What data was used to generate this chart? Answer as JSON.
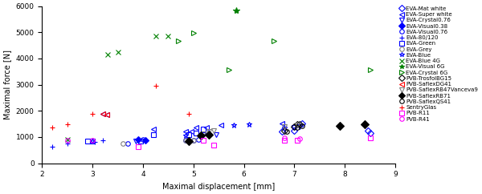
{
  "xlabel": "Maximal displacement [mm]",
  "ylabel": "Maximal force [N]",
  "xlim": [
    2,
    9
  ],
  "ylim": [
    0,
    6000
  ],
  "yticks": [
    0,
    1000,
    2000,
    3000,
    4000,
    5000,
    6000
  ],
  "xticks": [
    2,
    3,
    4,
    5,
    6,
    7,
    8,
    9
  ],
  "series": [
    {
      "label": "EVA-Mat white",
      "color": "blue",
      "marker": "D",
      "markersize": 4,
      "markerfacecolor": "none",
      "x": [
        6.75,
        7.0,
        7.15,
        8.45,
        8.5
      ],
      "y": [
        1220,
        1250,
        1530,
        1230,
        1150
      ]
    },
    {
      "label": "EVA-Super white",
      "color": "blue",
      "marker": "<",
      "markersize": 4,
      "markerfacecolor": "none",
      "x": [
        3.2,
        3.28,
        4.2,
        4.85,
        4.95,
        5.05,
        5.25,
        5.55,
        6.75
      ],
      "y": [
        1900,
        1850,
        1300,
        1200,
        1200,
        1350,
        1380,
        1450,
        1530
      ]
    },
    {
      "label": "EVA-Crystal0.76",
      "color": "blue",
      "marker": "v",
      "markersize": 4,
      "markerfacecolor": "none",
      "x": [
        3.85,
        5.2,
        5.3,
        5.45,
        6.8,
        7.0,
        7.1
      ],
      "y": [
        850,
        1080,
        1050,
        1100,
        1290,
        1350,
        1400
      ]
    },
    {
      "label": "EVA-Visual0.38",
      "color": "blue",
      "marker": "D",
      "markersize": 4,
      "markerfacecolor": "blue",
      "x": [
        3.9,
        4.05
      ],
      "y": [
        900,
        870
      ]
    },
    {
      "label": "EVA-Visual0.76",
      "color": "blue",
      "marker": "o",
      "markersize": 4,
      "markerfacecolor": "none",
      "x": [
        3.7,
        4.0,
        4.85,
        5.0,
        5.1
      ],
      "y": [
        760,
        900,
        880,
        870,
        920
      ]
    },
    {
      "label": "EVA-80/120",
      "color": "blue",
      "marker": "+",
      "markersize": 5,
      "markerfacecolor": "none",
      "x": [
        2.2,
        2.5,
        3.05,
        3.2
      ],
      "y": [
        640,
        760,
        800,
        870
      ]
    },
    {
      "label": "EVA-Green",
      "color": "blue",
      "marker": "s",
      "markersize": 4,
      "markerfacecolor": "none",
      "x": [
        2.9,
        3.0,
        3.95,
        4.2,
        4.9,
        5.05,
        5.2
      ],
      "y": [
        850,
        830,
        830,
        1100,
        1100,
        1150,
        1300
      ]
    },
    {
      "label": "EVA-Grey",
      "color": "gray",
      "marker": "o",
      "markersize": 4,
      "markerfacecolor": "none",
      "x": [
        3.6,
        4.85,
        5.0
      ],
      "y": [
        760,
        870,
        870
      ]
    },
    {
      "label": "EVA-Blue",
      "color": "blue",
      "marker": "*",
      "markersize": 5,
      "markerfacecolor": "none",
      "x": [
        3.0,
        4.85,
        5.8,
        6.1
      ],
      "y": [
        830,
        1050,
        1450,
        1500
      ]
    },
    {
      "label": "EVA-Blue 4G",
      "color": "green",
      "marker": "x",
      "markersize": 5,
      "markerfacecolor": "none",
      "x": [
        2.5,
        3.3,
        3.5,
        4.25,
        4.5
      ],
      "y": [
        920,
        4150,
        4250,
        4850,
        4850
      ]
    },
    {
      "label": "EVA-Visual 6G",
      "color": "green",
      "marker": "*",
      "markersize": 6,
      "markerfacecolor": "green",
      "x": [
        5.85
      ],
      "y": [
        5850
      ]
    },
    {
      "label": "EVA-Crystal 6G",
      "color": "green",
      "marker": ">",
      "markersize": 5,
      "markerfacecolor": "none",
      "x": [
        4.7,
        5.0,
        5.7,
        6.6,
        8.5
      ],
      "y": [
        4680,
        4980,
        3560,
        4680,
        3580
      ]
    },
    {
      "label": "PVB-TrosfolBG15",
      "color": "black",
      "marker": "D",
      "markersize": 4,
      "markerfacecolor": "none",
      "x": [
        6.8,
        7.0,
        7.05,
        7.1
      ],
      "y": [
        1230,
        1390,
        1490,
        1490
      ]
    },
    {
      "label": "PVB-SaflexDG41",
      "color": "red",
      "marker": "<",
      "markersize": 5,
      "markerfacecolor": "none",
      "x": [
        3.2,
        3.28
      ],
      "y": [
        1900,
        1870
      ]
    },
    {
      "label": "PVB-SaflexRB47Vanceva9",
      "color": "gray",
      "marker": "v",
      "markersize": 4,
      "markerfacecolor": "none",
      "x": [
        5.2,
        5.3,
        5.4,
        6.8,
        7.05
      ],
      "y": [
        1130,
        1200,
        1250,
        1390,
        1450
      ]
    },
    {
      "label": "PVB-SaflexRB71",
      "color": "black",
      "marker": "D",
      "markersize": 5,
      "markerfacecolor": "black",
      "x": [
        4.9,
        5.15,
        5.3,
        7.9,
        8.4
      ],
      "y": [
        850,
        1070,
        1080,
        1420,
        1500
      ]
    },
    {
      "label": "PVB-SaflexQS41",
      "color": "black",
      "marker": "o",
      "markersize": 4,
      "markerfacecolor": "none",
      "x": [
        6.85,
        7.05,
        7.15
      ],
      "y": [
        1200,
        1350,
        1430
      ]
    },
    {
      "label": "SentryGlas",
      "color": "red",
      "marker": "+",
      "markersize": 5,
      "markerfacecolor": "none",
      "x": [
        2.2,
        2.5,
        3.0,
        4.25,
        4.9
      ],
      "y": [
        1380,
        1500,
        1900,
        2950,
        1900
      ]
    },
    {
      "label": "PVB-R11",
      "color": "magenta",
      "marker": "s",
      "markersize": 4,
      "markerfacecolor": "none",
      "x": [
        3.9,
        5.2,
        5.4,
        6.8,
        7.05,
        8.5
      ],
      "y": [
        620,
        860,
        700,
        870,
        870,
        960
      ]
    },
    {
      "label": "PVB-R41",
      "color": "magenta",
      "marker": "o",
      "markersize": 4,
      "markerfacecolor": "none",
      "x": [
        2.5,
        3.0,
        6.8,
        7.1
      ],
      "y": [
        880,
        870,
        960,
        950
      ]
    }
  ],
  "legend_fontsize": 5.0,
  "axis_fontsize": 7,
  "tick_fontsize": 6.5
}
